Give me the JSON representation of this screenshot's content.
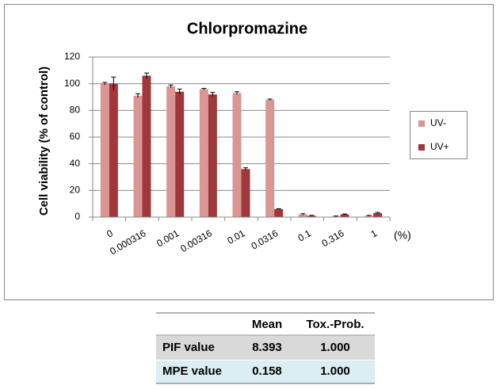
{
  "chart_data": {
    "type": "bar",
    "title": "Chlorpromazine",
    "y_label": "Cell viability (% of control)",
    "x_unit": "(%)",
    "categories": [
      "0",
      "0.000316",
      "0.001",
      "0.00316",
      "0.01",
      "0.0316",
      "0.1",
      "0.316",
      "1"
    ],
    "series": [
      {
        "name": "UV-",
        "color": "#d99694",
        "values": [
          100,
          91,
          98,
          96,
          93,
          88,
          2,
          0.5,
          1
        ],
        "errors": [
          1,
          1.5,
          1,
          0.5,
          1,
          0.5,
          0.5,
          0.3,
          0.3
        ]
      },
      {
        "name": "UV+",
        "color": "#a0373a",
        "values": [
          100,
          106,
          94,
          92,
          36,
          6,
          1,
          2,
          3
        ],
        "errors": [
          5,
          2,
          2,
          1.5,
          1,
          0.3,
          0.3,
          0.3,
          0.5
        ]
      }
    ],
    "ylim": [
      0,
      120
    ],
    "yticks": [
      0,
      20,
      40,
      60,
      80,
      100,
      120
    ],
    "grid": true,
    "legend": "right"
  },
  "table": {
    "columns": [
      "Mean",
      "Tox.-Prob."
    ],
    "rows": [
      {
        "label": "PIF value",
        "cells": [
          "8.393",
          "1.000"
        ]
      },
      {
        "label": "MPE value",
        "cells": [
          "0.158",
          "1.000"
        ]
      }
    ]
  }
}
